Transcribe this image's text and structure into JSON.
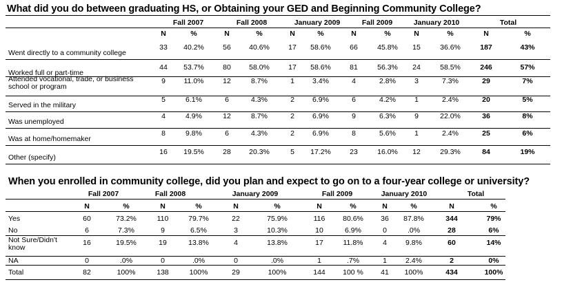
{
  "t1": {
    "title": "What did you do between graduating HS, or Obtaining your GED and Beginning Community College?",
    "periods": [
      "Fall 2007",
      "Fall 2008",
      "January 2009",
      "Fall 2009",
      "January 2010"
    ],
    "total_label": "Total",
    "n_label": "N",
    "pct_label": "%",
    "rows": [
      {
        "label": [
          "Went directly to a community college"
        ],
        "v": [
          "33",
          "40.2%",
          "56",
          "40.6%",
          "17",
          "58.6%",
          "66",
          "45.8%",
          "15",
          "36.6%",
          "187",
          "43%"
        ]
      },
      {
        "label": [
          "Worked full or part-time"
        ],
        "v": [
          "44",
          "53.7%",
          "80",
          "58.0%",
          "17",
          "58.6%",
          "81",
          "56.3%",
          "24",
          "58.5%",
          "246",
          "57%"
        ]
      },
      {
        "label": [
          "Attended vocational, trade, or business",
          "school or program"
        ],
        "v": [
          "9",
          "11.0%",
          "12",
          "8.7%",
          "1",
          "3.4%",
          "4",
          "2.8%",
          "3",
          "7.3%",
          "29",
          "7%"
        ]
      },
      {
        "label": [
          "Served in the military"
        ],
        "v": [
          "5",
          "6.1%",
          "6",
          "4.3%",
          "2",
          "6.9%",
          "6",
          "4.2%",
          "1",
          "2.4%",
          "20",
          "5%"
        ]
      },
      {
        "label": [
          "Was unemployed"
        ],
        "v": [
          "4",
          "4.9%",
          "12",
          "8.7%",
          "2",
          "6.9%",
          "9",
          "6.3%",
          "9",
          "22.0%",
          "36",
          "8%"
        ]
      },
      {
        "label": [
          "Was at home/homemaker"
        ],
        "v": [
          "8",
          "9.8%",
          "6",
          "4.3%",
          "2",
          "6.9%",
          "8",
          "5.6%",
          "1",
          "2.4%",
          "25",
          "6%"
        ]
      },
      {
        "label": [
          "Other (specify)"
        ],
        "v": [
          "16",
          "19.5%",
          "28",
          "20.3%",
          "5",
          "17.2%",
          "23",
          "16.0%",
          "12",
          "29.3%",
          "84",
          "19%"
        ]
      }
    ]
  },
  "t2": {
    "title": "When you enrolled in community college, did you plan and expect to go on to a four-year college or university?",
    "periods": [
      "Fall 2007",
      "Fall 2008",
      "January 2009",
      "Fall 2009",
      "January 2010"
    ],
    "total_label": "Total",
    "n_label": "N",
    "pct_label": "%",
    "rows": [
      {
        "label": [
          "Yes"
        ],
        "v": [
          "60",
          "73.2%",
          "110",
          "79.7%",
          "22",
          "75.9%",
          "116",
          "80.6%",
          "36",
          "87.8%",
          "344",
          "79%"
        ]
      },
      {
        "label": [
          "No"
        ],
        "v": [
          "6",
          "7.3%",
          "9",
          "6.5%",
          "3",
          "10.3%",
          "10",
          "6.9%",
          "0",
          ".0%",
          "28",
          "6%"
        ]
      },
      {
        "label": [
          "Not Sure/Didn't",
          "know"
        ],
        "v": [
          "16",
          "19.5%",
          "19",
          "13.8%",
          "4",
          "13.8%",
          "17",
          "11.8%",
          "4",
          "9.8%",
          "60",
          "14%"
        ]
      },
      {
        "label": [
          "NA"
        ],
        "v": [
          "0",
          ".0%",
          "0",
          ".0%",
          "0",
          ".0%",
          "1",
          ".7%",
          "1",
          "2.4%",
          "2",
          "0%"
        ]
      },
      {
        "label": [
          "Total"
        ],
        "v": [
          "82",
          "100%",
          "138",
          "100%",
          "29",
          "100%",
          "144",
          "100 %",
          "41",
          "100%",
          "434",
          "100%"
        ]
      }
    ]
  }
}
